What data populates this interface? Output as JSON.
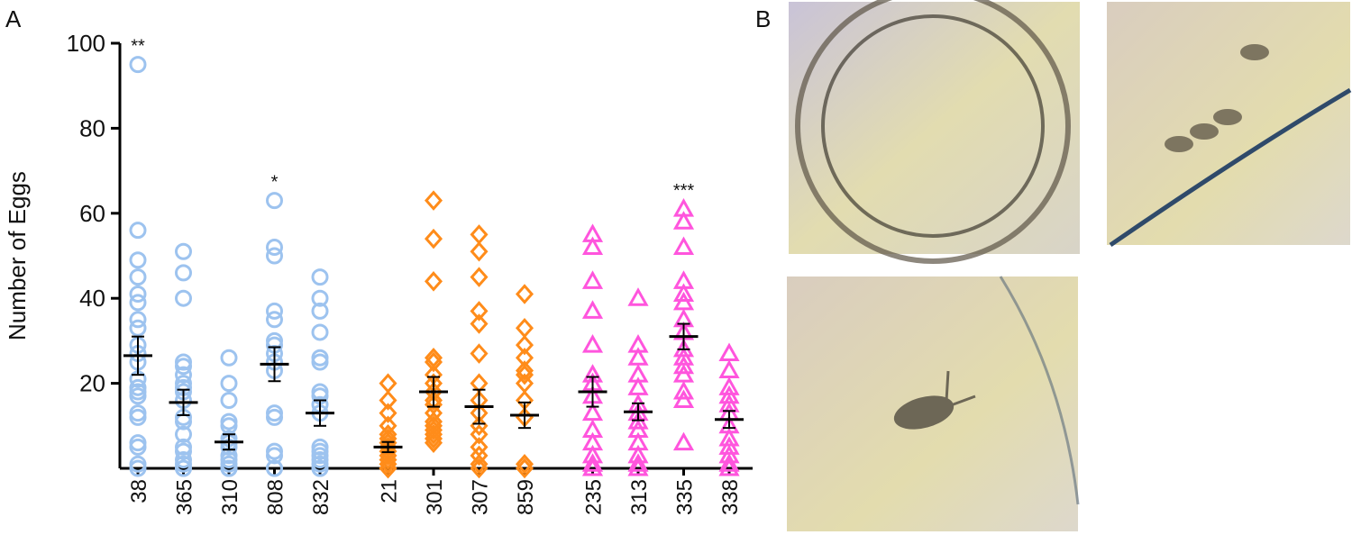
{
  "chart_data": {
    "type": "column-scatter",
    "panel_label": "A",
    "y_label": "Number of Eggs",
    "ylim": [
      0,
      100
    ],
    "yticks": [
      20,
      40,
      60,
      80,
      100
    ],
    "series": [
      {
        "color": "#9dc3ef",
        "marker": "circle",
        "categories": [
          "38",
          "365",
          "310",
          "808",
          "832"
        ],
        "values": [
          [
            95,
            56,
            49,
            45,
            41,
            39,
            35,
            33,
            29,
            27,
            25,
            21,
            19,
            18,
            17,
            13,
            12,
            6,
            5,
            1,
            0
          ],
          [
            51,
            46,
            40,
            25,
            24,
            22,
            20,
            19,
            18,
            16,
            12,
            11,
            8,
            5,
            4,
            2,
            1,
            0,
            0
          ],
          [
            26,
            20,
            16,
            11,
            10,
            7,
            6,
            5,
            3,
            2,
            1,
            0,
            0,
            0
          ],
          [
            63,
            52,
            50,
            37,
            35,
            30,
            29,
            27,
            25,
            23,
            13,
            12,
            4,
            3,
            0,
            0
          ],
          [
            45,
            40,
            37,
            32,
            26,
            25,
            18,
            17,
            15,
            13,
            5,
            4,
            3,
            2,
            1,
            0,
            0
          ]
        ],
        "means": [
          26.5,
          15.5,
          6.2,
          24.5,
          13
        ],
        "sems": [
          4.5,
          3,
          1.8,
          4,
          3
        ],
        "annotations": [
          "**",
          null,
          null,
          "*",
          null
        ]
      },
      {
        "color": "#ff8c1a",
        "marker": "diamond",
        "categories": [
          "21",
          "301",
          "307",
          "859"
        ],
        "values": [
          [
            20,
            16,
            13,
            10,
            8,
            7,
            6,
            5,
            4,
            3,
            2,
            1,
            0,
            0,
            0
          ],
          [
            63,
            54,
            44,
            26,
            25,
            22,
            20,
            18,
            16,
            15,
            13,
            11,
            10,
            9,
            8,
            7,
            6
          ],
          [
            55,
            51,
            45,
            37,
            34,
            27,
            20,
            16,
            13,
            10,
            8,
            5,
            3,
            1,
            0
          ],
          [
            41,
            33,
            29,
            26,
            23,
            22,
            20,
            16,
            12,
            1,
            0
          ]
        ],
        "means": [
          5,
          18,
          14.5,
          12.5
        ],
        "sems": [
          1.2,
          3.5,
          4,
          3
        ],
        "annotations": [
          null,
          null,
          null,
          null
        ]
      },
      {
        "color": "#ff55dd",
        "marker": "triangle",
        "categories": [
          "235",
          "313",
          "335",
          "338"
        ],
        "values": [
          [
            55,
            52,
            44,
            37,
            29,
            22,
            20,
            17,
            13,
            9,
            6,
            3,
            1,
            0
          ],
          [
            40,
            29,
            26,
            22,
            19,
            15,
            13,
            11,
            9,
            6,
            3,
            1,
            0
          ],
          [
            61,
            58,
            52,
            44,
            41,
            39,
            35,
            32,
            28,
            26,
            24,
            22,
            18,
            16,
            6
          ],
          [
            27,
            23,
            19,
            17,
            15,
            13,
            10,
            7,
            5,
            3,
            1,
            0
          ]
        ],
        "means": [
          18,
          13.3,
          31,
          11.5
        ],
        "sems": [
          3.5,
          2,
          3,
          2
        ],
        "annotations": [
          null,
          null,
          "***",
          null
        ]
      }
    ]
  },
  "panel_b": {
    "label": "B"
  }
}
